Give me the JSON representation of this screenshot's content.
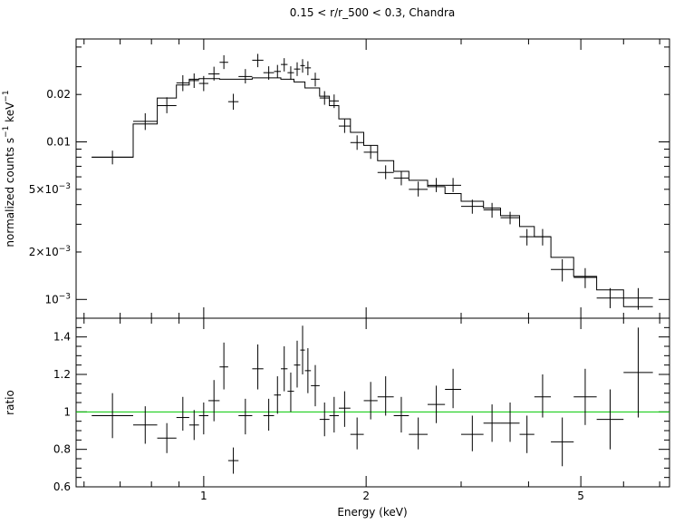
{
  "chart_data": [
    {
      "panel": "spectrum",
      "type": "scatter",
      "title": "0.15 < r/r_500 < 0.3, Chandra",
      "ylabel": "normalized counts s",
      "ylabel_sup1": "−1",
      "ylabel_mid": "  keV",
      "ylabel_sup2": "−1",
      "xscale": "log",
      "yscale": "log",
      "xlim": [
        0.58,
        7.3
      ],
      "ylim": [
        0.00076,
        0.045
      ],
      "yticks": [
        {
          "value": 0.02,
          "label": "0.02"
        },
        {
          "value": 0.01,
          "label": "0.01"
        },
        {
          "value": 0.005,
          "base": "5×10",
          "exp": "−3"
        },
        {
          "value": 0.002,
          "base": "2×10",
          "exp": "−3"
        },
        {
          "value": 0.001,
          "base": "10",
          "exp": "−3"
        }
      ],
      "data": [
        {
          "xlo": 0.62,
          "xhi": 0.74,
          "y": 0.008,
          "ylo": 0.0072,
          "yhi": 0.0088
        },
        {
          "xlo": 0.74,
          "xhi": 0.82,
          "y": 0.0135,
          "ylo": 0.0119,
          "yhi": 0.0152
        },
        {
          "xlo": 0.82,
          "xhi": 0.89,
          "y": 0.017,
          "ylo": 0.0152,
          "yhi": 0.0192
        },
        {
          "xlo": 0.89,
          "xhi": 0.94,
          "y": 0.0237,
          "ylo": 0.021,
          "yhi": 0.0265
        },
        {
          "xlo": 0.94,
          "xhi": 0.98,
          "y": 0.0245,
          "ylo": 0.022,
          "yhi": 0.0272
        },
        {
          "xlo": 0.98,
          "xhi": 1.02,
          "y": 0.0235,
          "ylo": 0.021,
          "yhi": 0.0262
        },
        {
          "xlo": 1.02,
          "xhi": 1.07,
          "y": 0.027,
          "ylo": 0.0245,
          "yhi": 0.03
        },
        {
          "xlo": 1.07,
          "xhi": 1.11,
          "y": 0.032,
          "ylo": 0.029,
          "yhi": 0.0355
        },
        {
          "xlo": 1.11,
          "xhi": 1.16,
          "y": 0.018,
          "ylo": 0.016,
          "yhi": 0.0202
        },
        {
          "xlo": 1.16,
          "xhi": 1.23,
          "y": 0.026,
          "ylo": 0.0235,
          "yhi": 0.029
        },
        {
          "xlo": 1.23,
          "xhi": 1.29,
          "y": 0.033,
          "ylo": 0.0298,
          "yhi": 0.0362
        },
        {
          "xlo": 1.29,
          "xhi": 1.35,
          "y": 0.0275,
          "ylo": 0.0248,
          "yhi": 0.0302
        },
        {
          "xlo": 1.35,
          "xhi": 1.39,
          "y": 0.028,
          "ylo": 0.0255,
          "yhi": 0.0308
        },
        {
          "xlo": 1.39,
          "xhi": 1.43,
          "y": 0.031,
          "ylo": 0.028,
          "yhi": 0.034
        },
        {
          "xlo": 1.43,
          "xhi": 1.47,
          "y": 0.0275,
          "ylo": 0.0248,
          "yhi": 0.0302
        },
        {
          "xlo": 1.47,
          "xhi": 1.51,
          "y": 0.029,
          "ylo": 0.0262,
          "yhi": 0.032
        },
        {
          "xlo": 1.51,
          "xhi": 1.54,
          "y": 0.0305,
          "ylo": 0.0275,
          "yhi": 0.0335
        },
        {
          "xlo": 1.54,
          "xhi": 1.58,
          "y": 0.0295,
          "ylo": 0.0265,
          "yhi": 0.0325
        },
        {
          "xlo": 1.58,
          "xhi": 1.64,
          "y": 0.025,
          "ylo": 0.0225,
          "yhi": 0.0275
        },
        {
          "xlo": 1.64,
          "xhi": 1.71,
          "y": 0.019,
          "ylo": 0.0172,
          "yhi": 0.021
        },
        {
          "xlo": 1.71,
          "xhi": 1.78,
          "y": 0.0182,
          "ylo": 0.0164,
          "yhi": 0.02
        },
        {
          "xlo": 1.78,
          "xhi": 1.87,
          "y": 0.0126,
          "ylo": 0.0114,
          "yhi": 0.0139
        },
        {
          "xlo": 1.87,
          "xhi": 1.98,
          "y": 0.0099,
          "ylo": 0.0089,
          "yhi": 0.011
        },
        {
          "xlo": 1.98,
          "xhi": 2.1,
          "y": 0.0086,
          "ylo": 0.0078,
          "yhi": 0.0095
        },
        {
          "xlo": 2.1,
          "xhi": 2.25,
          "y": 0.0064,
          "ylo": 0.0058,
          "yhi": 0.0071
        },
        {
          "xlo": 2.25,
          "xhi": 2.4,
          "y": 0.0059,
          "ylo": 0.0053,
          "yhi": 0.0065
        },
        {
          "xlo": 2.4,
          "xhi": 2.6,
          "y": 0.005,
          "ylo": 0.0045,
          "yhi": 0.0056
        },
        {
          "xlo": 2.6,
          "xhi": 2.8,
          "y": 0.0053,
          "ylo": 0.0048,
          "yhi": 0.0059
        },
        {
          "xlo": 2.8,
          "xhi": 3.0,
          "y": 0.0053,
          "ylo": 0.0048,
          "yhi": 0.0059
        },
        {
          "xlo": 3.0,
          "xhi": 3.3,
          "y": 0.0039,
          "ylo": 0.0035,
          "yhi": 0.0043
        },
        {
          "xlo": 3.3,
          "xhi": 3.55,
          "y": 0.0037,
          "ylo": 0.0033,
          "yhi": 0.0041
        },
        {
          "xlo": 3.55,
          "xhi": 3.85,
          "y": 0.0033,
          "ylo": 0.003,
          "yhi": 0.0036
        },
        {
          "xlo": 3.85,
          "xhi": 4.1,
          "y": 0.0025,
          "ylo": 0.0022,
          "yhi": 0.0028
        },
        {
          "xlo": 4.1,
          "xhi": 4.4,
          "y": 0.0025,
          "ylo": 0.0022,
          "yhi": 0.0028
        },
        {
          "xlo": 4.4,
          "xhi": 4.85,
          "y": 0.00155,
          "ylo": 0.0013,
          "yhi": 0.0018
        },
        {
          "xlo": 4.85,
          "xhi": 5.35,
          "y": 0.00138,
          "ylo": 0.00118,
          "yhi": 0.00158
        },
        {
          "xlo": 5.35,
          "xhi": 6.0,
          "y": 0.00102,
          "ylo": 0.00088,
          "yhi": 0.00118
        },
        {
          "xlo": 6.0,
          "xhi": 6.8,
          "y": 0.00102,
          "ylo": 0.00086,
          "yhi": 0.00118
        }
      ],
      "model": [
        {
          "xlo": 0.62,
          "xhi": 0.74,
          "y": 0.008
        },
        {
          "xlo": 0.74,
          "xhi": 0.82,
          "y": 0.013
        },
        {
          "xlo": 0.82,
          "xhi": 0.89,
          "y": 0.019
        },
        {
          "xlo": 0.89,
          "xhi": 0.94,
          "y": 0.023
        },
        {
          "xlo": 0.94,
          "xhi": 0.98,
          "y": 0.025
        },
        {
          "xlo": 0.98,
          "xhi": 1.07,
          "y": 0.0252
        },
        {
          "xlo": 1.07,
          "xhi": 1.23,
          "y": 0.025
        },
        {
          "xlo": 1.23,
          "xhi": 1.39,
          "y": 0.0255
        },
        {
          "xlo": 1.39,
          "xhi": 1.47,
          "y": 0.025
        },
        {
          "xlo": 1.47,
          "xhi": 1.54,
          "y": 0.024
        },
        {
          "xlo": 1.54,
          "xhi": 1.64,
          "y": 0.022
        },
        {
          "xlo": 1.64,
          "xhi": 1.71,
          "y": 0.0195
        },
        {
          "xlo": 1.71,
          "xhi": 1.78,
          "y": 0.017
        },
        {
          "xlo": 1.78,
          "xhi": 1.87,
          "y": 0.014
        },
        {
          "xlo": 1.87,
          "xhi": 1.98,
          "y": 0.0115
        },
        {
          "xlo": 1.98,
          "xhi": 2.1,
          "y": 0.0095
        },
        {
          "xlo": 2.1,
          "xhi": 2.25,
          "y": 0.0076
        },
        {
          "xlo": 2.25,
          "xhi": 2.4,
          "y": 0.0065
        },
        {
          "xlo": 2.4,
          "xhi": 2.6,
          "y": 0.0057
        },
        {
          "xlo": 2.6,
          "xhi": 2.8,
          "y": 0.0052
        },
        {
          "xlo": 2.8,
          "xhi": 3.0,
          "y": 0.0047
        },
        {
          "xlo": 3.0,
          "xhi": 3.3,
          "y": 0.0042
        },
        {
          "xlo": 3.3,
          "xhi": 3.55,
          "y": 0.0038
        },
        {
          "xlo": 3.55,
          "xhi": 3.85,
          "y": 0.0034
        },
        {
          "xlo": 3.85,
          "xhi": 4.1,
          "y": 0.0029
        },
        {
          "xlo": 4.1,
          "xhi": 4.4,
          "y": 0.0025
        },
        {
          "xlo": 4.4,
          "xhi": 4.85,
          "y": 0.00185
        },
        {
          "xlo": 4.85,
          "xhi": 5.35,
          "y": 0.0014
        },
        {
          "xlo": 5.35,
          "xhi": 6.0,
          "y": 0.00115
        },
        {
          "xlo": 6.0,
          "xhi": 6.8,
          "y": 0.0009
        }
      ]
    },
    {
      "panel": "ratio",
      "type": "scatter",
      "ylabel": "ratio",
      "xlabel": "Energy (keV)",
      "xscale": "log",
      "xlim": [
        0.58,
        7.3
      ],
      "ylim": [
        0.6,
        1.5
      ],
      "xticks": [
        {
          "value": 1,
          "label": "1"
        },
        {
          "value": 2,
          "label": "2"
        },
        {
          "value": 5,
          "label": "5"
        }
      ],
      "yticks": [
        {
          "value": 0.6,
          "label": "0.6"
        },
        {
          "value": 0.8,
          "label": "0.8"
        },
        {
          "value": 1,
          "label": "1"
        },
        {
          "value": 1.2,
          "label": "1.2"
        },
        {
          "value": 1.4,
          "label": "1.4"
        }
      ],
      "reference_line": {
        "y": 1.0,
        "color": "#00c800"
      },
      "data": [
        {
          "xlo": 0.62,
          "xhi": 0.74,
          "y": 0.98,
          "ylo": 0.86,
          "yhi": 1.1
        },
        {
          "xlo": 0.74,
          "xhi": 0.82,
          "y": 0.93,
          "ylo": 0.83,
          "yhi": 1.03
        },
        {
          "xlo": 0.82,
          "xhi": 0.89,
          "y": 0.86,
          "ylo": 0.78,
          "yhi": 0.94
        },
        {
          "xlo": 0.89,
          "xhi": 0.94,
          "y": 0.97,
          "ylo": 0.9,
          "yhi": 1.08
        },
        {
          "xlo": 0.94,
          "xhi": 0.98,
          "y": 0.93,
          "ylo": 0.85,
          "yhi": 1.01
        },
        {
          "xlo": 0.98,
          "xhi": 1.02,
          "y": 0.98,
          "ylo": 0.88,
          "yhi": 1.05
        },
        {
          "xlo": 1.02,
          "xhi": 1.07,
          "y": 1.06,
          "ylo": 0.95,
          "yhi": 1.17
        },
        {
          "xlo": 1.07,
          "xhi": 1.11,
          "y": 1.24,
          "ylo": 1.12,
          "yhi": 1.37
        },
        {
          "xlo": 1.11,
          "xhi": 1.16,
          "y": 0.74,
          "ylo": 0.67,
          "yhi": 0.81
        },
        {
          "xlo": 1.16,
          "xhi": 1.23,
          "y": 0.98,
          "ylo": 0.88,
          "yhi": 1.07
        },
        {
          "xlo": 1.23,
          "xhi": 1.29,
          "y": 1.23,
          "ylo": 1.12,
          "yhi": 1.36
        },
        {
          "xlo": 1.29,
          "xhi": 1.35,
          "y": 0.98,
          "ylo": 0.9,
          "yhi": 1.07
        },
        {
          "xlo": 1.35,
          "xhi": 1.39,
          "y": 1.09,
          "ylo": 0.99,
          "yhi": 1.19
        },
        {
          "xlo": 1.39,
          "xhi": 1.43,
          "y": 1.23,
          "ylo": 1.11,
          "yhi": 1.35
        },
        {
          "xlo": 1.43,
          "xhi": 1.47,
          "y": 1.11,
          "ylo": 1.0,
          "yhi": 1.21
        },
        {
          "xlo": 1.47,
          "xhi": 1.51,
          "y": 1.25,
          "ylo": 1.13,
          "yhi": 1.38
        },
        {
          "xlo": 1.51,
          "xhi": 1.54,
          "y": 1.33,
          "ylo": 1.2,
          "yhi": 1.46
        },
        {
          "xlo": 1.54,
          "xhi": 1.58,
          "y": 1.22,
          "ylo": 1.1,
          "yhi": 1.34
        },
        {
          "xlo": 1.58,
          "xhi": 1.64,
          "y": 1.14,
          "ylo": 1.03,
          "yhi": 1.25
        },
        {
          "xlo": 1.64,
          "xhi": 1.71,
          "y": 0.96,
          "ylo": 0.87,
          "yhi": 1.05
        },
        {
          "xlo": 1.71,
          "xhi": 1.78,
          "y": 0.98,
          "ylo": 0.89,
          "yhi": 1.08
        },
        {
          "xlo": 1.78,
          "xhi": 1.87,
          "y": 1.02,
          "ylo": 0.92,
          "yhi": 1.11
        },
        {
          "xlo": 1.87,
          "xhi": 1.98,
          "y": 0.88,
          "ylo": 0.8,
          "yhi": 0.97
        },
        {
          "xlo": 1.98,
          "xhi": 2.1,
          "y": 1.06,
          "ylo": 0.96,
          "yhi": 1.16
        },
        {
          "xlo": 2.1,
          "xhi": 2.25,
          "y": 1.08,
          "ylo": 0.98,
          "yhi": 1.19
        },
        {
          "xlo": 2.25,
          "xhi": 2.4,
          "y": 0.98,
          "ylo": 0.89,
          "yhi": 1.08
        },
        {
          "xlo": 2.4,
          "xhi": 2.6,
          "y": 0.88,
          "ylo": 0.8,
          "yhi": 0.97
        },
        {
          "xlo": 2.6,
          "xhi": 2.8,
          "y": 1.04,
          "ylo": 0.94,
          "yhi": 1.14
        },
        {
          "xlo": 2.8,
          "xhi": 3.0,
          "y": 1.12,
          "ylo": 1.02,
          "yhi": 1.23
        },
        {
          "xlo": 3.0,
          "xhi": 3.3,
          "y": 0.88,
          "ylo": 0.79,
          "yhi": 0.98
        },
        {
          "xlo": 3.3,
          "xhi": 3.55,
          "y": 0.94,
          "ylo": 0.84,
          "yhi": 1.04
        },
        {
          "xlo": 3.55,
          "xhi": 3.85,
          "y": 0.94,
          "ylo": 0.84,
          "yhi": 1.05
        },
        {
          "xlo": 3.85,
          "xhi": 4.1,
          "y": 0.88,
          "ylo": 0.78,
          "yhi": 0.98
        },
        {
          "xlo": 4.1,
          "xhi": 4.4,
          "y": 1.08,
          "ylo": 0.97,
          "yhi": 1.2
        },
        {
          "xlo": 4.4,
          "xhi": 4.85,
          "y": 0.84,
          "ylo": 0.71,
          "yhi": 0.97
        },
        {
          "xlo": 4.85,
          "xhi": 5.35,
          "y": 1.08,
          "ylo": 0.93,
          "yhi": 1.23
        },
        {
          "xlo": 5.35,
          "xhi": 6.0,
          "y": 0.96,
          "ylo": 0.8,
          "yhi": 1.12
        },
        {
          "xlo": 6.0,
          "xhi": 6.8,
          "y": 1.21,
          "ylo": 0.97,
          "yhi": 1.45
        }
      ]
    }
  ]
}
